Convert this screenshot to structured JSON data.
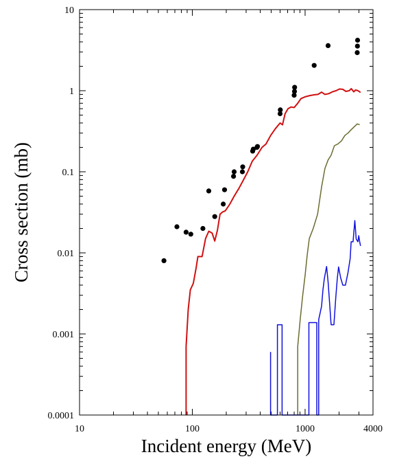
{
  "chart_data": {
    "type": "line",
    "title": "",
    "xlabel": "Incident energy (MeV)",
    "ylabel": "Cross section (mb)",
    "x_scale": "log",
    "y_scale": "log",
    "xlim": [
      10,
      4000
    ],
    "ylim": [
      0.0001,
      10
    ],
    "grid": false,
    "x_ticks": [
      {
        "value": 10,
        "label": "10"
      },
      {
        "value": 100,
        "label": "100"
      },
      {
        "value": 1000,
        "label": "1000"
      },
      {
        "value": 4000,
        "label": "4000"
      }
    ],
    "y_ticks": [
      {
        "value": 0.0001,
        "label": "0.0001"
      },
      {
        "value": 0.001,
        "label": "0.001"
      },
      {
        "value": 0.01,
        "label": "0.01"
      },
      {
        "value": 0.1,
        "label": "0.1"
      },
      {
        "value": 1,
        "label": "1"
      },
      {
        "value": 10,
        "label": "10"
      }
    ],
    "series": [
      {
        "kind": "scatter",
        "color": "#000000",
        "points": [
          [
            56,
            0.008
          ],
          [
            73,
            0.021
          ],
          [
            88,
            0.018
          ],
          [
            97,
            0.017
          ],
          [
            124,
            0.02
          ],
          [
            140,
            0.058
          ],
          [
            158,
            0.028
          ],
          [
            188,
            0.04
          ],
          [
            193,
            0.06
          ],
          [
            232,
            0.088
          ],
          [
            235,
            0.1
          ],
          [
            278,
            0.1
          ],
          [
            280,
            0.115
          ],
          [
            343,
            0.18
          ],
          [
            347,
            0.19
          ],
          [
            374,
            0.2
          ],
          [
            378,
            0.205
          ],
          [
            600,
            0.52
          ],
          [
            603,
            0.58
          ],
          [
            800,
            0.88
          ],
          [
            805,
            0.98
          ],
          [
            808,
            1.1
          ],
          [
            1203,
            2.05
          ],
          [
            1600,
            3.6
          ],
          [
            2900,
            2.95
          ],
          [
            2910,
            3.55
          ],
          [
            2920,
            4.2
          ]
        ]
      },
      {
        "kind": "line",
        "color": "#d01010",
        "points": [
          [
            88,
            0.0001
          ],
          [
            88,
            0.0007
          ],
          [
            92,
            0.002
          ],
          [
            96,
            0.0035
          ],
          [
            102,
            0.0042
          ],
          [
            108,
            0.0065
          ],
          [
            112,
            0.009
          ],
          [
            122,
            0.009
          ],
          [
            131,
            0.015
          ],
          [
            140,
            0.0185
          ],
          [
            150,
            0.0175
          ],
          [
            158,
            0.014
          ],
          [
            167,
            0.019
          ],
          [
            176,
            0.03
          ],
          [
            186,
            0.032
          ],
          [
            196,
            0.033
          ],
          [
            215,
            0.04
          ],
          [
            235,
            0.05
          ],
          [
            260,
            0.063
          ],
          [
            285,
            0.08
          ],
          [
            310,
            0.1
          ],
          [
            340,
            0.135
          ],
          [
            375,
            0.16
          ],
          [
            415,
            0.2
          ],
          [
            450,
            0.22
          ],
          [
            495,
            0.28
          ],
          [
            545,
            0.34
          ],
          [
            600,
            0.4
          ],
          [
            630,
            0.38
          ],
          [
            665,
            0.52
          ],
          [
            705,
            0.6
          ],
          [
            750,
            0.63
          ],
          [
            800,
            0.62
          ],
          [
            860,
            0.7
          ],
          [
            920,
            0.8
          ],
          [
            1000,
            0.84
          ],
          [
            1100,
            0.87
          ],
          [
            1200,
            0.89
          ],
          [
            1300,
            0.9
          ],
          [
            1400,
            0.96
          ],
          [
            1500,
            0.9
          ],
          [
            1620,
            0.92
          ],
          [
            1750,
            0.97
          ],
          [
            1880,
            1.0
          ],
          [
            2020,
            1.05
          ],
          [
            2160,
            1.04
          ],
          [
            2300,
            0.98
          ],
          [
            2460,
            1.0
          ],
          [
            2570,
            1.06
          ],
          [
            2700,
            0.97
          ],
          [
            2800,
            1.02
          ],
          [
            2950,
            1.0
          ],
          [
            3100,
            0.95
          ]
        ]
      },
      {
        "kind": "line",
        "color": "#6b6b30",
        "points": [
          [
            860,
            0.0001
          ],
          [
            860,
            0.0007
          ],
          [
            905,
            0.0015
          ],
          [
            950,
            0.0029
          ],
          [
            1000,
            0.0053
          ],
          [
            1045,
            0.0095
          ],
          [
            1090,
            0.015
          ],
          [
            1180,
            0.02
          ],
          [
            1290,
            0.03
          ],
          [
            1400,
            0.065
          ],
          [
            1500,
            0.11
          ],
          [
            1600,
            0.14
          ],
          [
            1700,
            0.16
          ],
          [
            1820,
            0.21
          ],
          [
            1950,
            0.22
          ],
          [
            2100,
            0.24
          ],
          [
            2250,
            0.28
          ],
          [
            2400,
            0.3
          ],
          [
            2560,
            0.33
          ],
          [
            2730,
            0.36
          ],
          [
            2900,
            0.39
          ],
          [
            3050,
            0.38
          ]
        ]
      },
      {
        "kind": "line",
        "color": "#1010dd",
        "points": [
          [
            494,
            0.0006
          ],
          [
            494,
            0.0001
          ],
          [
            568,
            0.0001
          ],
          [
            568,
            0.0013
          ],
          [
            625,
            0.0013
          ],
          [
            625,
            0.0001
          ],
          [
            1080,
            0.0001
          ],
          [
            1080,
            0.00138
          ],
          [
            1270,
            0.00138
          ],
          [
            1270,
            0.0001
          ],
          [
            1320,
            0.0001
          ],
          [
            1320,
            0.0015
          ],
          [
            1400,
            0.0022
          ],
          [
            1440,
            0.0035
          ],
          [
            1480,
            0.0048
          ],
          [
            1550,
            0.0068
          ],
          [
            1600,
            0.0044
          ],
          [
            1660,
            0.0021
          ],
          [
            1700,
            0.0013
          ],
          [
            1800,
            0.0013
          ],
          [
            1870,
            0.0028
          ],
          [
            1930,
            0.0048
          ],
          [
            1980,
            0.0067
          ],
          [
            2070,
            0.0049
          ],
          [
            2160,
            0.004
          ],
          [
            2280,
            0.004
          ],
          [
            2400,
            0.0057
          ],
          [
            2510,
            0.0085
          ],
          [
            2560,
            0.0137
          ],
          [
            2660,
            0.0137
          ],
          [
            2760,
            0.025
          ],
          [
            2840,
            0.0148
          ],
          [
            2940,
            0.0137
          ],
          [
            2990,
            0.0163
          ],
          [
            3050,
            0.0137
          ],
          [
            3100,
            0.0122
          ]
        ]
      }
    ]
  }
}
